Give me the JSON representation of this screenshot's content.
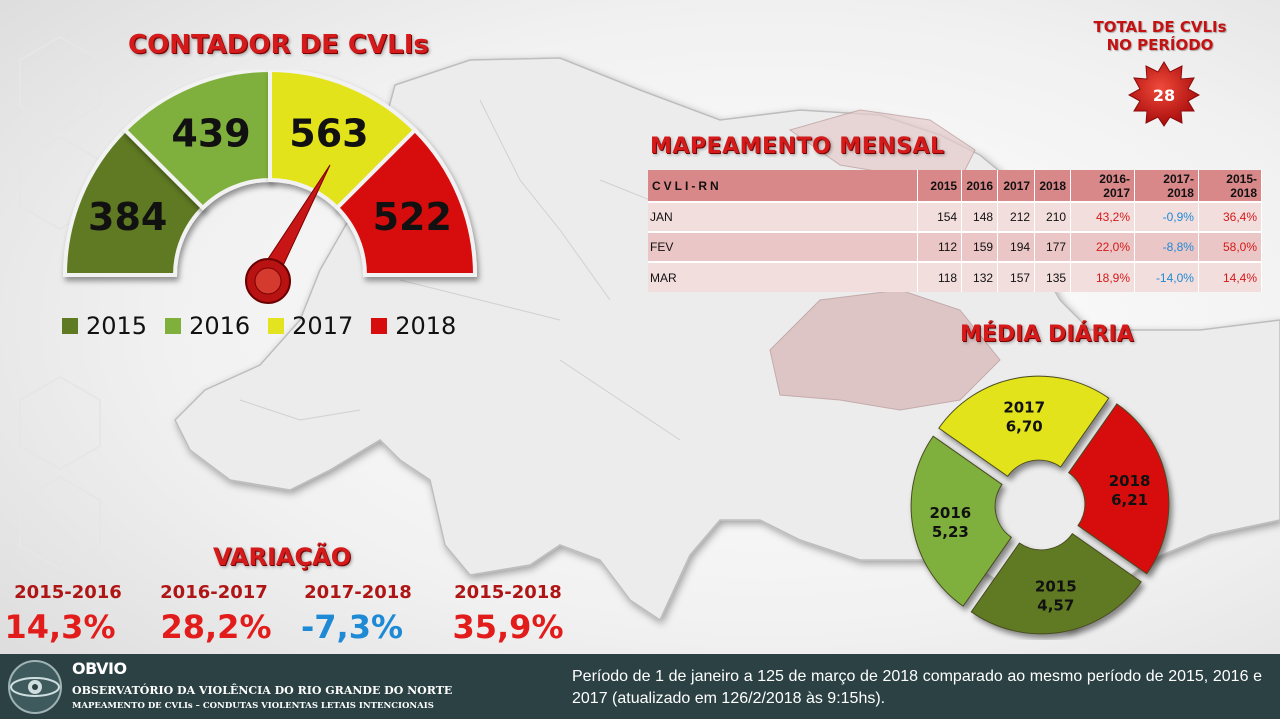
{
  "gauge": {
    "title": "CONTADOR DE CVLIs",
    "segments": [
      {
        "year": "2015",
        "value": "384",
        "color": "#5e7a22"
      },
      {
        "year": "2016",
        "value": "439",
        "color": "#7fb03c"
      },
      {
        "year": "2017",
        "value": "563",
        "color": "#e3e31f"
      },
      {
        "year": "2018",
        "value": "522",
        "color": "#d70d0d"
      }
    ]
  },
  "legend": [
    {
      "label": "2015",
      "color": "#5e7a22"
    },
    {
      "label": "2016",
      "color": "#7fb03c"
    },
    {
      "label": "2017",
      "color": "#e3e31f"
    },
    {
      "label": "2018",
      "color": "#d70d0d"
    }
  ],
  "total": {
    "title_line1": "TOTAL DE CVLIs",
    "title_line2": "NO PERÍODO",
    "value": "28"
  },
  "mensal": {
    "title": "MAPEAMENTO MENSAL",
    "headers": [
      "CVLI-RN",
      "2015",
      "2016",
      "2017",
      "2018",
      "2016-2017",
      "2017-2018",
      "2015-2018"
    ],
    "rows": [
      [
        "JAN",
        "154",
        "148",
        "212",
        "210",
        "43,2%",
        "-0,9%",
        "36,4%"
      ],
      [
        "FEV",
        "112",
        "159",
        "194",
        "177",
        "22,0%",
        "-8,8%",
        "58,0%"
      ],
      [
        "MAR",
        "118",
        "132",
        "157",
        "135",
        "18,9%",
        "-14,0%",
        "14,4%"
      ]
    ]
  },
  "media": {
    "title": "MÉDIA DIÁRIA",
    "segments": [
      {
        "year": "2017",
        "value": "6,70",
        "color": "#e3e31f"
      },
      {
        "year": "2018",
        "value": "6,21",
        "color": "#d70d0d"
      },
      {
        "year": "2015",
        "value": "4,57",
        "color": "#5e7a22"
      },
      {
        "year": "2016",
        "value": "5,23",
        "color": "#7fb03c"
      }
    ]
  },
  "variacao": {
    "title": "VARIAÇÃO",
    "items": [
      {
        "label": "2015-2016",
        "value": "14,3%",
        "color": "#e21b1b"
      },
      {
        "label": "2016-2017",
        "value": "28,2%",
        "color": "#e21b1b"
      },
      {
        "label": "2017-2018",
        "value": "-7,3%",
        "color": "#1e8ad6"
      },
      {
        "label": "2015-2018",
        "value": "35,9%",
        "color": "#e21b1b"
      }
    ]
  },
  "footer": {
    "brand": "OBVIO",
    "org": "OBSERVATÓRIO  DA VIOLÊNCIA DO RIO GRANDE DO NORTE",
    "subtitle": "MAPEAMENTO DE CVLIs – CONDUTAS VIOLENTAS LETAIS INTENCIONAIS",
    "note": "Período de 1 de janeiro a 125 de março de 2018 comparado ao mesmo período de 2015, 2016 e 2017 (atualizado em 126/2/2018 às 9:15hs)."
  }
}
